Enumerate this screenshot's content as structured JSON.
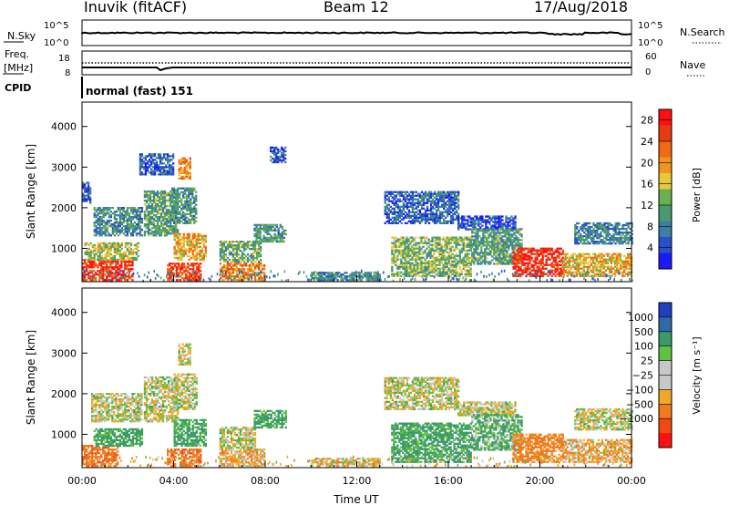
{
  "header": {
    "site": "Inuvik (fitACF)",
    "beam": "Beam 12",
    "date": "17/Aug/2018"
  },
  "noise_panel": {
    "left_label": "N.Sky",
    "right_label": "N.Search",
    "left_ticks": [
      "10^5",
      "10^0"
    ],
    "right_ticks": [
      "10^5",
      "10^0"
    ]
  },
  "freq_panel": {
    "left_label_line1": "Freq.",
    "left_label_line2": "[MHz]",
    "right_label": "Nave",
    "left_ticks": [
      "18",
      "8"
    ],
    "right_ticks": [
      "60",
      "0"
    ]
  },
  "cpid": {
    "label": "CPID",
    "value": "normal (fast) 151"
  },
  "colors": {
    "power_scale": [
      "#1a1aff",
      "#2850c8",
      "#3c7ea6",
      "#4a9a70",
      "#6ab050",
      "#e6c83c",
      "#f0961e",
      "#f06a14",
      "#e63c14",
      "#ff1010"
    ],
    "velocity_scale": [
      "#ff1010",
      "#f04a14",
      "#f07a1e",
      "#f0a828",
      "#c8c8c8",
      "#c8c8c8",
      "#60c040",
      "#3c9a6a",
      "#2f6aa8",
      "#2040c0"
    ]
  },
  "chart_data": [
    {
      "type": "heatmap",
      "name": "power",
      "ylabel": "Slant Range [km]",
      "y_ticks": [
        1000,
        2000,
        3000,
        4000
      ],
      "ylim": [
        180,
        4600
      ],
      "x_ticks": [
        "00:00",
        "04:00",
        "08:00",
        "12:00",
        "16:00",
        "20:00",
        "00:00"
      ],
      "xlim_hours": [
        0,
        24
      ],
      "colorbar": {
        "label": "Power [dB]",
        "ticks": [
          4,
          8,
          12,
          16,
          20,
          24,
          28
        ],
        "range": [
          0,
          30
        ]
      },
      "regions": [
        {
          "t0": 0.0,
          "t1": 2.2,
          "r0": 200,
          "r1": 700,
          "value": 26
        },
        {
          "t0": 0.1,
          "t1": 2.5,
          "r0": 700,
          "r1": 1150,
          "value": 15
        },
        {
          "t0": 0.5,
          "t1": 2.6,
          "r0": 1300,
          "r1": 2000,
          "value": 9
        },
        {
          "t0": 0.0,
          "t1": 0.4,
          "r0": 2100,
          "r1": 2600,
          "value": 5
        },
        {
          "t0": 2.7,
          "t1": 4.2,
          "r0": 1300,
          "r1": 2400,
          "value": 11
        },
        {
          "t0": 2.5,
          "t1": 4.0,
          "r0": 2800,
          "r1": 3300,
          "value": 6
        },
        {
          "t0": 3.7,
          "t1": 5.2,
          "r0": 200,
          "r1": 650,
          "value": 25
        },
        {
          "t0": 4.0,
          "t1": 5.4,
          "r0": 700,
          "r1": 1350,
          "value": 19
        },
        {
          "t0": 3.9,
          "t1": 5.0,
          "r0": 1600,
          "r1": 2500,
          "value": 10
        },
        {
          "t0": 4.2,
          "t1": 4.7,
          "r0": 2700,
          "r1": 3200,
          "value": 20
        },
        {
          "t0": 6.0,
          "t1": 8.0,
          "r0": 200,
          "r1": 650,
          "value": 21
        },
        {
          "t0": 6.0,
          "t1": 7.8,
          "r0": 650,
          "r1": 1150,
          "value": 12
        },
        {
          "t0": 7.5,
          "t1": 8.9,
          "r0": 1150,
          "r1": 1600,
          "value": 10
        },
        {
          "t0": 8.2,
          "t1": 8.9,
          "r0": 3100,
          "r1": 3500,
          "value": 6
        },
        {
          "t0": 10.0,
          "t1": 13.0,
          "r0": 200,
          "r1": 400,
          "value": 9
        },
        {
          "t0": 13.2,
          "t1": 16.4,
          "r0": 1600,
          "r1": 2400,
          "value": 6
        },
        {
          "t0": 13.5,
          "t1": 17.0,
          "r0": 300,
          "r1": 1250,
          "value": 13
        },
        {
          "t0": 16.4,
          "t1": 18.9,
          "r0": 1450,
          "r1": 1800,
          "value": 4
        },
        {
          "t0": 17.0,
          "t1": 19.2,
          "r0": 600,
          "r1": 1500,
          "value": 11
        },
        {
          "t0": 18.8,
          "t1": 21.0,
          "r0": 300,
          "r1": 1000,
          "value": 27
        },
        {
          "t0": 21.0,
          "t1": 24.0,
          "r0": 300,
          "r1": 850,
          "value": 18
        },
        {
          "t0": 21.5,
          "t1": 24.0,
          "r0": 1100,
          "r1": 1600,
          "value": 8
        }
      ]
    },
    {
      "type": "heatmap",
      "name": "velocity",
      "ylabel": "Slant Range [km]",
      "y_ticks": [
        1000,
        2000,
        3000,
        4000
      ],
      "ylim": [
        180,
        4600
      ],
      "x_ticks": [
        "00:00",
        "04:00",
        "08:00",
        "12:00",
        "16:00",
        "20:00",
        "00:00"
      ],
      "xlim_hours": [
        0,
        24
      ],
      "xlabel": "Time UT",
      "colorbar": {
        "label": "Velocity [m s⁻¹]",
        "ticks": [
          "1000",
          "500",
          "100",
          "25",
          "−25",
          "−100",
          "−500",
          "−1000"
        ],
        "range": [
          -1000,
          1000
        ]
      },
      "regions": [
        {
          "t0": 0.0,
          "t1": 1.6,
          "r0": 200,
          "r1": 700,
          "value": -300
        },
        {
          "t0": 0.5,
          "t1": 2.6,
          "r0": 700,
          "r1": 1150,
          "value": 200
        },
        {
          "t0": 0.4,
          "t1": 2.6,
          "r0": 1300,
          "r1": 2000,
          "value": 0
        },
        {
          "t0": 2.7,
          "t1": 4.2,
          "r0": 1300,
          "r1": 2400,
          "value": 0
        },
        {
          "t0": 3.7,
          "t1": 5.2,
          "r0": 200,
          "r1": 650,
          "value": -300
        },
        {
          "t0": 4.0,
          "t1": 5.4,
          "r0": 700,
          "r1": 1350,
          "value": 200
        },
        {
          "t0": 4.0,
          "t1": 5.0,
          "r0": 1600,
          "r1": 2500,
          "value": 0
        },
        {
          "t0": 4.2,
          "t1": 4.7,
          "r0": 2700,
          "r1": 3200,
          "value": 0
        },
        {
          "t0": 6.0,
          "t1": 8.0,
          "r0": 200,
          "r1": 650,
          "value": -100
        },
        {
          "t0": 6.0,
          "t1": 7.6,
          "r0": 650,
          "r1": 1150,
          "value": 0
        },
        {
          "t0": 7.5,
          "t1": 8.9,
          "r0": 1150,
          "r1": 1600,
          "value": 200
        },
        {
          "t0": 10.0,
          "t1": 13.0,
          "r0": 200,
          "r1": 400,
          "value": -60
        },
        {
          "t0": 13.2,
          "t1": 16.4,
          "r0": 1600,
          "r1": 2400,
          "value": 0
        },
        {
          "t0": 13.5,
          "t1": 17.0,
          "r0": 300,
          "r1": 1250,
          "value": 200
        },
        {
          "t0": 16.4,
          "t1": 18.9,
          "r0": 1450,
          "r1": 1800,
          "value": 0
        },
        {
          "t0": 17.0,
          "t1": 19.2,
          "r0": 600,
          "r1": 1500,
          "value": 120
        },
        {
          "t0": 18.8,
          "t1": 21.0,
          "r0": 300,
          "r1": 1000,
          "value": -250
        },
        {
          "t0": 21.0,
          "t1": 24.0,
          "r0": 300,
          "r1": 850,
          "value": -90
        },
        {
          "t0": 21.5,
          "t1": 24.0,
          "r0": 1100,
          "r1": 1600,
          "value": 0
        }
      ]
    }
  ]
}
